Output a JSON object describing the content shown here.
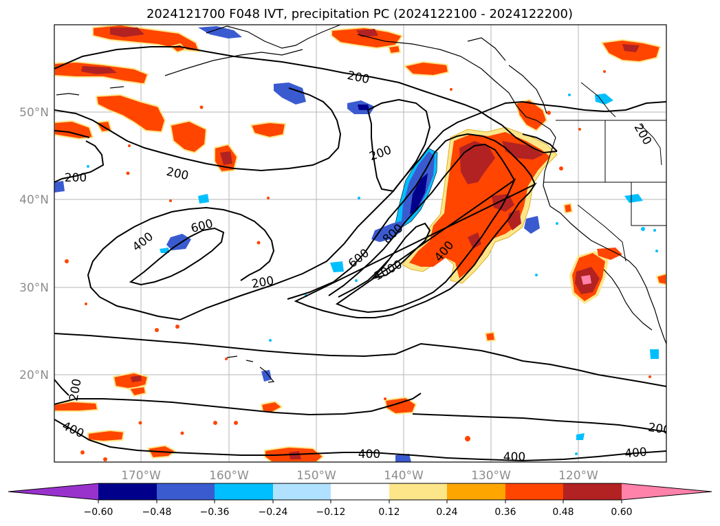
{
  "title": "2024121700 F048 IVT, precipitation PC (2024122100 - 2024122200)",
  "map": {
    "lon_ticks": [
      "170°W",
      "160°W",
      "150°W",
      "140°W",
      "130°W",
      "120°W"
    ],
    "lat_ticks": [
      "50°N",
      "40°N",
      "30°N",
      "20°N"
    ],
    "contour_labels": [
      "200",
      "200",
      "200",
      "200",
      "200",
      "200",
      "200",
      "200",
      "400",
      "400",
      "400",
      "400",
      "400",
      "400",
      "600",
      "600",
      "800",
      "1000"
    ]
  },
  "colorbar": {
    "ticks": [
      "−0.60",
      "−0.48",
      "−0.36",
      "−0.24",
      "−0.12",
      "0.12",
      "0.24",
      "0.36",
      "0.48",
      "0.60"
    ],
    "colors": [
      "#9932cc",
      "#00008b",
      "#3a5bd0",
      "#00bfff",
      "#b0e2ff",
      "#ffffff",
      "#fde68a",
      "#ffa500",
      "#ff4500",
      "#b22222",
      "#ff82ab"
    ]
  }
}
